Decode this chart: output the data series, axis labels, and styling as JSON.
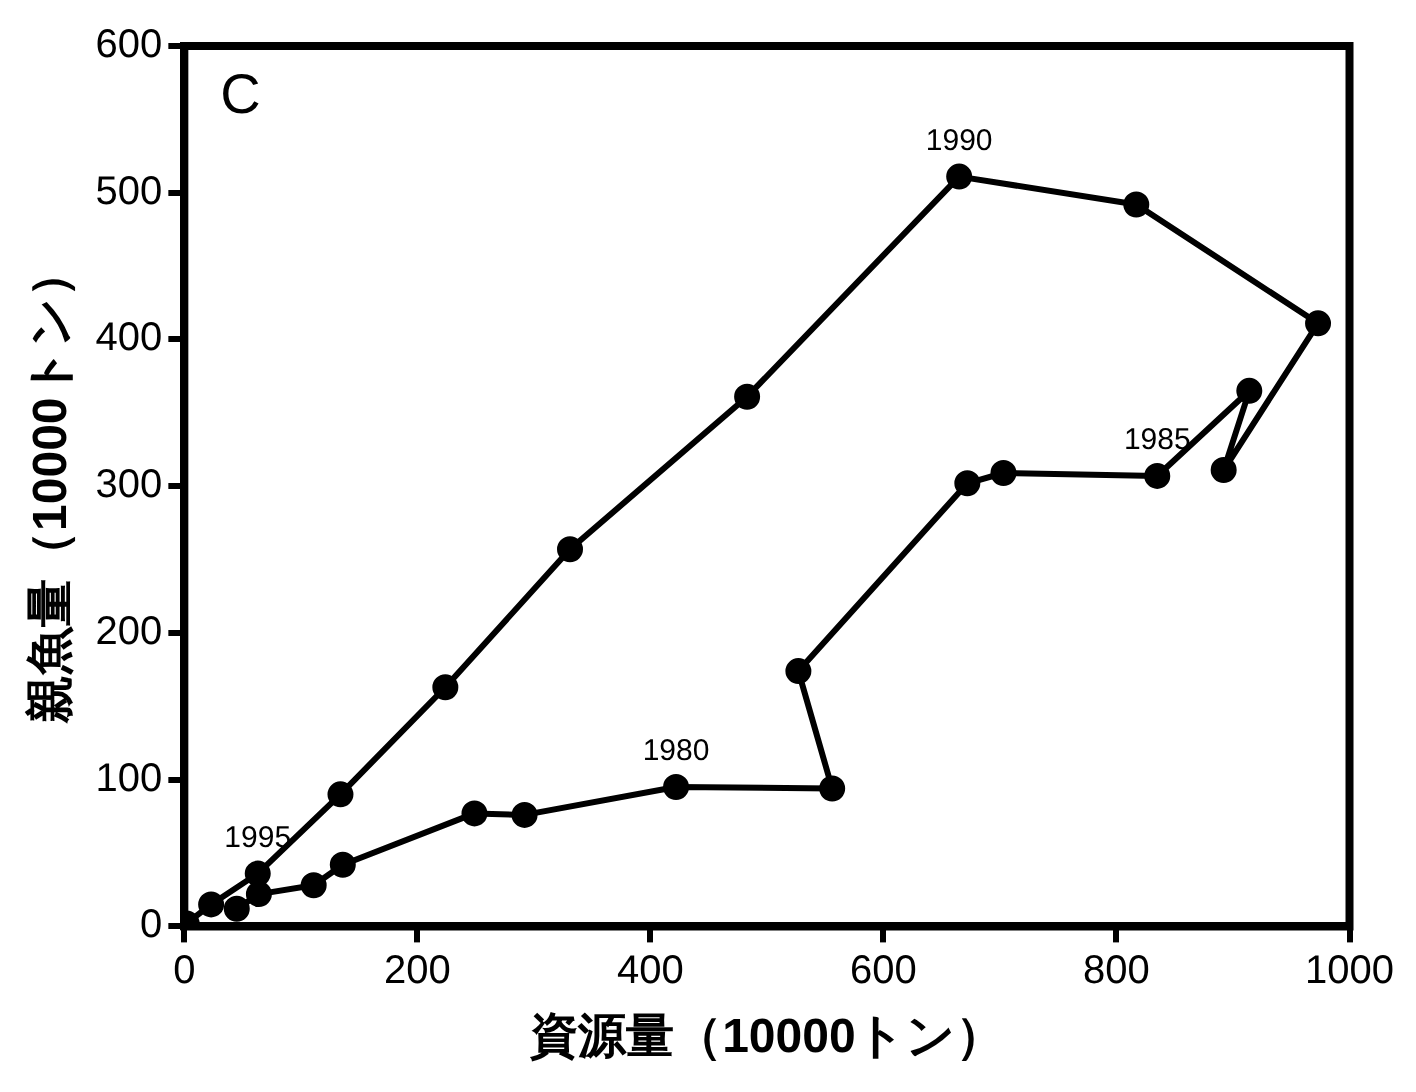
{
  "chart_data": {
    "type": "line",
    "xlabel": "資源量（10000トン）",
    "ylabel": "親魚量（10000トン）",
    "annotations": [
      "C",
      {
        "text": "1980",
        "x": 422,
        "y": 95
      },
      {
        "text": "1985",
        "x": 835,
        "y": 307
      },
      {
        "text": "1990",
        "x": 665,
        "y": 511
      },
      {
        "text": "1995",
        "x": 63,
        "y": 36
      }
    ],
    "series": [
      {
        "color": "#000000",
        "x": [
          45,
          64,
          111,
          136,
          249,
          292,
          422,
          556,
          527,
          672,
          703,
          835,
          914,
          892,
          973,
          817,
          665,
          483,
          331,
          224,
          134,
          63,
          23,
          2
        ],
        "values": [
          12,
          22,
          28,
          42,
          77,
          76,
          95,
          94,
          174,
          302,
          309,
          307,
          365,
          311,
          411,
          492,
          511,
          361,
          257,
          163,
          90,
          36,
          15,
          2
        ]
      }
    ],
    "xlim": [
      0,
      1000
    ],
    "xticks": [
      0,
      200,
      400,
      600,
      800,
      1000
    ],
    "ylim": [
      0,
      600
    ],
    "yticks": [
      0,
      100,
      200,
      300,
      400,
      500,
      600
    ],
    "grid": false,
    "marker": "circle",
    "line_style": "solid"
  }
}
